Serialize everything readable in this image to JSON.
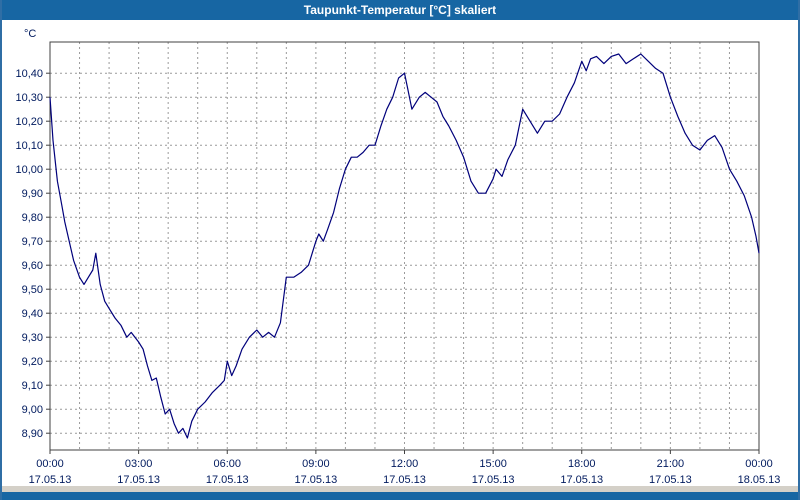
{
  "window": {
    "title": "Taupunkt-Temperatur [°C] skaliert"
  },
  "chart_data": {
    "type": "line",
    "title": "Taupunkt-Temperatur [°C] skaliert",
    "xlabel": "",
    "ylabel": "°C",
    "grid": true,
    "legend": "none",
    "xlim": [
      0,
      24
    ],
    "ylim": [
      8.83,
      10.53
    ],
    "x_grid_step_hours": 1,
    "titlebar_color": "#1766a3",
    "line_color": "#00007b",
    "grid_color": "#9a9a9a",
    "axis_color": "#404040",
    "label_color": "#001a5e",
    "y_ticks": [
      {
        "value": 10.4,
        "label": "10,40"
      },
      {
        "value": 10.3,
        "label": "10,30"
      },
      {
        "value": 10.2,
        "label": "10,20"
      },
      {
        "value": 10.1,
        "label": "10,10"
      },
      {
        "value": 10.0,
        "label": "10,00"
      },
      {
        "value": 9.9,
        "label": "9,90"
      },
      {
        "value": 9.8,
        "label": "9,80"
      },
      {
        "value": 9.7,
        "label": "9,70"
      },
      {
        "value": 9.6,
        "label": "9,60"
      },
      {
        "value": 9.5,
        "label": "9,50"
      },
      {
        "value": 9.4,
        "label": "9,40"
      },
      {
        "value": 9.3,
        "label": "9,30"
      },
      {
        "value": 9.2,
        "label": "9,20"
      },
      {
        "value": 9.1,
        "label": "9,10"
      },
      {
        "value": 9.0,
        "label": "9,00"
      },
      {
        "value": 8.9,
        "label": "8,90"
      }
    ],
    "x_ticks": [
      {
        "hour": 0,
        "label": "00:00",
        "date": "17.05.13"
      },
      {
        "hour": 3,
        "label": "03:00",
        "date": "17.05.13"
      },
      {
        "hour": 6,
        "label": "06:00",
        "date": "17.05.13"
      },
      {
        "hour": 9,
        "label": "09:00",
        "date": "17.05.13"
      },
      {
        "hour": 12,
        "label": "12:00",
        "date": "17.05.13"
      },
      {
        "hour": 15,
        "label": "15:00",
        "date": "17.05.13"
      },
      {
        "hour": 18,
        "label": "18:00",
        "date": "17.05.13"
      },
      {
        "hour": 21,
        "label": "21:00",
        "date": "17.05.13"
      },
      {
        "hour": 24,
        "label": "00:00",
        "date": "18.05.13"
      }
    ],
    "series": [
      {
        "name": "Taupunkt-Temperatur",
        "x": [
          0,
          0.1,
          0.25,
          0.4,
          0.5,
          0.65,
          0.8,
          1.0,
          1.15,
          1.3,
          1.45,
          1.55,
          1.7,
          1.85,
          2.0,
          2.2,
          2.4,
          2.6,
          2.75,
          3.0,
          3.15,
          3.3,
          3.45,
          3.6,
          3.75,
          3.9,
          4.05,
          4.2,
          4.35,
          4.5,
          4.65,
          4.8,
          5.0,
          5.25,
          5.5,
          5.75,
          5.9,
          6.0,
          6.15,
          6.3,
          6.5,
          6.75,
          7.0,
          7.2,
          7.4,
          7.6,
          7.8,
          8.0,
          8.25,
          8.5,
          8.75,
          9.0,
          9.1,
          9.25,
          9.4,
          9.6,
          9.8,
          10.0,
          10.2,
          10.4,
          10.6,
          10.8,
          11.0,
          11.2,
          11.4,
          11.6,
          11.8,
          12.0,
          12.1,
          12.25,
          12.5,
          12.7,
          12.9,
          13.1,
          13.3,
          13.5,
          13.75,
          14.0,
          14.25,
          14.5,
          14.75,
          15.0,
          15.1,
          15.3,
          15.5,
          15.75,
          16.0,
          16.2,
          16.5,
          16.75,
          17.0,
          17.25,
          17.5,
          17.75,
          18.0,
          18.15,
          18.3,
          18.5,
          18.75,
          19.0,
          19.25,
          19.5,
          19.75,
          20.0,
          20.25,
          20.5,
          20.75,
          21.0,
          21.25,
          21.5,
          21.75,
          22.0,
          22.25,
          22.5,
          22.75,
          23.0,
          23.25,
          23.5,
          23.75,
          23.9,
          24.0
        ],
        "y": [
          10.3,
          10.12,
          9.95,
          9.85,
          9.78,
          9.7,
          9.62,
          9.55,
          9.52,
          9.55,
          9.58,
          9.65,
          9.52,
          9.45,
          9.42,
          9.38,
          9.35,
          9.3,
          9.32,
          9.28,
          9.25,
          9.18,
          9.12,
          9.13,
          9.05,
          8.98,
          9.0,
          8.94,
          8.9,
          8.92,
          8.88,
          8.95,
          9.0,
          9.03,
          9.07,
          9.1,
          9.12,
          9.2,
          9.14,
          9.18,
          9.25,
          9.3,
          9.33,
          9.3,
          9.32,
          9.3,
          9.36,
          9.55,
          9.55,
          9.57,
          9.6,
          9.7,
          9.73,
          9.7,
          9.75,
          9.82,
          9.92,
          10.0,
          10.05,
          10.05,
          10.07,
          10.1,
          10.1,
          10.18,
          10.25,
          10.3,
          10.38,
          10.4,
          10.34,
          10.25,
          10.3,
          10.32,
          10.3,
          10.28,
          10.22,
          10.18,
          10.12,
          10.05,
          9.95,
          9.9,
          9.9,
          9.96,
          10.0,
          9.97,
          10.04,
          10.1,
          10.25,
          10.21,
          10.15,
          10.2,
          10.2,
          10.23,
          10.3,
          10.36,
          10.45,
          10.41,
          10.46,
          10.47,
          10.44,
          10.47,
          10.48,
          10.44,
          10.46,
          10.48,
          10.45,
          10.42,
          10.4,
          10.3,
          10.22,
          10.15,
          10.1,
          10.08,
          10.12,
          10.14,
          10.09,
          10.0,
          9.95,
          9.89,
          9.8,
          9.72,
          9.65
        ]
      }
    ]
  }
}
